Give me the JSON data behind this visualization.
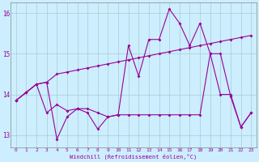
{
  "xlabel": "Windchill (Refroidissement éolien,°C)",
  "bg_color": "#cceeff",
  "grid_color": "#aacccc",
  "line_color": "#990099",
  "ylim": [
    12.7,
    16.25
  ],
  "yticks": [
    13,
    14,
    15,
    16
  ],
  "xlim": [
    -0.5,
    23.5
  ],
  "x_ticks": [
    0,
    1,
    2,
    3,
    4,
    5,
    6,
    7,
    8,
    9,
    10,
    11,
    12,
    13,
    14,
    15,
    16,
    17,
    18,
    19,
    20,
    21,
    22,
    23
  ],
  "line1_y": [
    13.85,
    14.05,
    14.25,
    14.3,
    14.5,
    14.55,
    14.6,
    14.65,
    14.7,
    14.75,
    14.8,
    14.85,
    14.9,
    14.95,
    15.0,
    15.05,
    15.1,
    15.15,
    15.2,
    15.25,
    15.3,
    15.35,
    15.4,
    15.45
  ],
  "line2_y": [
    13.85,
    14.05,
    14.25,
    14.3,
    12.9,
    13.45,
    13.65,
    13.55,
    13.15,
    13.45,
    13.5,
    15.2,
    14.45,
    15.35,
    15.35,
    16.1,
    15.75,
    15.2,
    15.75,
    15.0,
    14.0,
    14.0,
    13.2,
    13.55
  ],
  "line3_y": [
    13.85,
    14.05,
    14.25,
    13.55,
    13.75,
    13.6,
    13.65,
    13.65,
    13.55,
    13.45,
    13.5,
    13.5,
    13.5,
    13.5,
    13.5,
    13.5,
    13.5,
    13.5,
    13.5,
    15.0,
    15.0,
    13.95,
    13.2,
    13.55
  ]
}
